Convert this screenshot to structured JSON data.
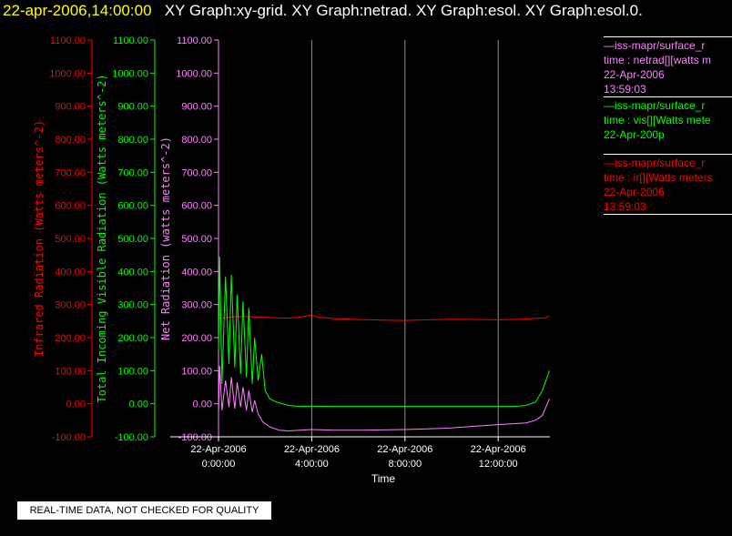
{
  "header": {
    "timestamp": "22-apr-2006,14:00:00",
    "titles": "XY Graph:xy-grid.  XY Graph:netrad.  XY Graph:esol.  XY Graph:esol.0."
  },
  "colors": {
    "background": "#000000",
    "header_time": "#ffff00",
    "header_title": "#ffffff",
    "infrared": "#ff0000",
    "visible": "#00ff00",
    "net": "#ff80ff",
    "grid": "#ffffff",
    "axis_text": "#ffffff"
  },
  "legend": [
    {
      "id": "net",
      "color": "#ff80ff",
      "lines": [
        "—iss-mapr/surface_r",
        "time : netrad[][watts m",
        "22-Apr-2006",
        "13:59:03"
      ]
    },
    {
      "id": "vis",
      "color": "#00ff00",
      "lines": [
        "—iss-mapr/surface_r",
        "time : vis[][Watts mete",
        "22-Apr-200p"
      ]
    },
    {
      "id": "ir",
      "color": "#ff0000",
      "lines": [
        "—iss-mapr/surface_r",
        "time : ir[][Watts meters",
        "22-Apr-2006",
        "13:59:03"
      ]
    }
  ],
  "notice": "REAL-TIME DATA, NOT CHECKED FOR QUALITY",
  "chart_data": {
    "type": "line",
    "title": "",
    "xlabel": "Time",
    "xlim_hours": [
      -0.15,
      17.5
    ],
    "x_ticks": [
      {
        "hour": 0,
        "date": "22-Apr-2006",
        "time": "0:00:00"
      },
      {
        "hour": 4,
        "date": "22-Apr-2006",
        "time": "4:00:00"
      },
      {
        "hour": 8,
        "date": "22-Apr-2006",
        "time": "8:00:00"
      },
      {
        "hour": 12,
        "date": "22-Apr-2006",
        "time": "12:00:00"
      }
    ],
    "grid": true,
    "y_axes": [
      {
        "id": "ir",
        "label": "Infrared Radiation (Watts meters^-2)",
        "color": "#ff0000",
        "ylim": [
          -100,
          1100
        ],
        "ticks": [
          "-100.00",
          "0.00",
          "100.00",
          "200.00",
          "300.00",
          "400.00",
          "500.00",
          "600.00",
          "700.00",
          "800.00",
          "900.00",
          "1000.00",
          "1100.00"
        ]
      },
      {
        "id": "vis",
        "label": "Total Incoming Visible Radiation (Watts meters^-2)",
        "color": "#00ff00",
        "ylim": [
          -100,
          1100
        ],
        "ticks": [
          "-100.00",
          "0.00",
          "100.00",
          "200.00",
          "300.00",
          "400.00",
          "500.00",
          "600.00",
          "700.00",
          "800.00",
          "900.00",
          "1000.00",
          "1100.00"
        ]
      },
      {
        "id": "net",
        "label": "Net Radiation (watts meters^-2)",
        "color": "#ff80ff",
        "ylim": [
          -100,
          1100
        ],
        "ticks": [
          "-100.00",
          "0.00",
          "100.00",
          "200.00",
          "300.00",
          "400.00",
          "500.00",
          "600.00",
          "700.00",
          "800.00",
          "900.00",
          "1000.00",
          "1100.00"
        ]
      }
    ],
    "series": [
      {
        "axis": "ir",
        "color": "#ff0000",
        "x": [
          0,
          0.5,
          1,
          2,
          3,
          3.5,
          4,
          4.3,
          5,
          6,
          7,
          8,
          9,
          10,
          11,
          12,
          13,
          14,
          14.2
        ],
        "y": [
          258,
          262,
          264,
          261,
          259,
          262,
          268,
          262,
          257,
          255,
          253,
          252,
          254,
          256,
          255,
          254,
          256,
          260,
          265
        ]
      },
      {
        "axis": "vis",
        "color": "#00ff00",
        "x": [
          0,
          0.05,
          0.15,
          0.3,
          0.45,
          0.55,
          0.7,
          0.8,
          0.95,
          1.05,
          1.2,
          1.3,
          1.45,
          1.55,
          1.7,
          1.85,
          2.0,
          2.2,
          2.5,
          3.0,
          3.5,
          4,
          5,
          6,
          7,
          8,
          9,
          10,
          11,
          12,
          12.7,
          13.2,
          13.6,
          13.9,
          14.2
        ],
        "y": [
          160,
          445,
          60,
          385,
          120,
          390,
          110,
          330,
          90,
          310,
          80,
          290,
          60,
          200,
          70,
          150,
          40,
          15,
          5,
          -5,
          -8,
          -7,
          -8,
          -8,
          -8,
          -8,
          -8,
          -8,
          -8,
          -8,
          -8,
          -5,
          5,
          40,
          100
        ]
      },
      {
        "axis": "net",
        "color": "#ff80ff",
        "x": [
          0,
          0.05,
          0.15,
          0.3,
          0.45,
          0.55,
          0.7,
          0.8,
          0.95,
          1.05,
          1.2,
          1.3,
          1.45,
          1.55,
          1.7,
          1.9,
          2.2,
          2.6,
          3,
          3.5,
          4,
          5,
          6,
          7,
          8,
          9,
          10,
          11,
          12,
          12.7,
          13.2,
          13.6,
          13.9,
          14.2
        ],
        "y": [
          -30,
          115,
          -20,
          70,
          -10,
          80,
          -15,
          65,
          -10,
          50,
          -20,
          40,
          -25,
          10,
          -30,
          -55,
          -70,
          -80,
          -82,
          -80,
          -78,
          -80,
          -80,
          -79,
          -78,
          -76,
          -73,
          -68,
          -63,
          -60,
          -58,
          -50,
          -35,
          15
        ]
      }
    ]
  }
}
